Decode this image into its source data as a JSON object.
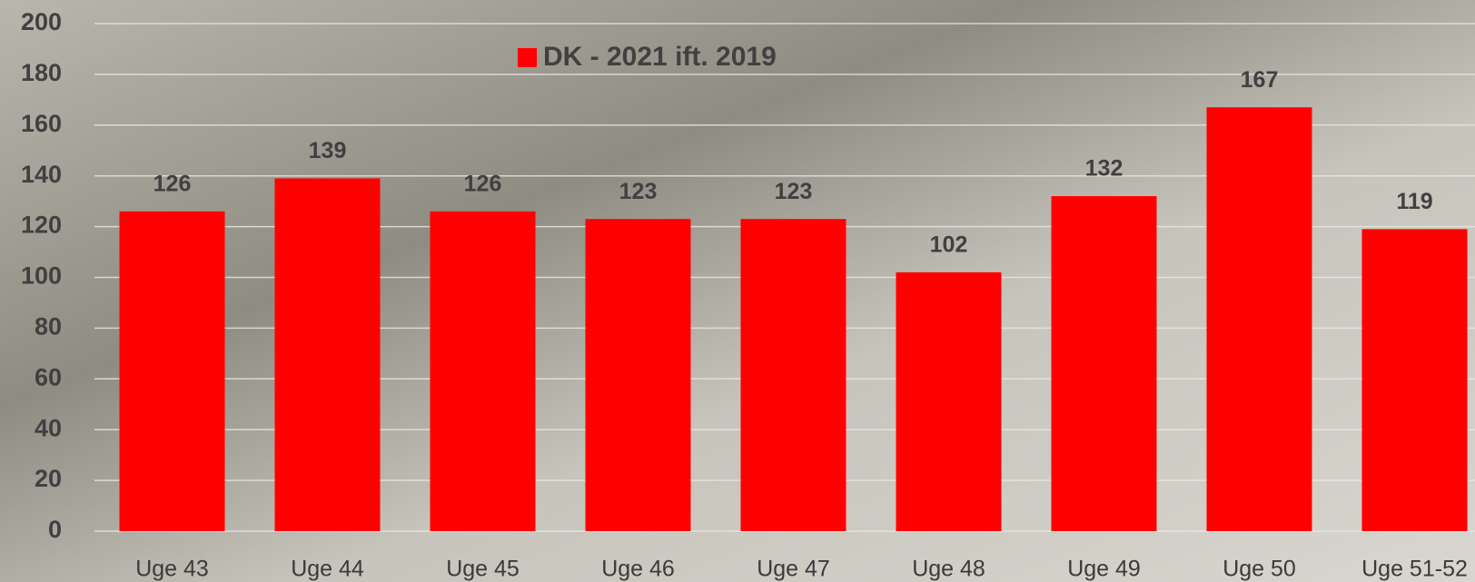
{
  "chart_data": {
    "type": "bar",
    "categories": [
      "Uge 43",
      "Uge 44",
      "Uge 45",
      "Uge 46",
      "Uge 47",
      "Uge 48",
      "Uge 49",
      "Uge 50",
      "Uge 51-52"
    ],
    "series": [
      {
        "name": "DK - 2021 ift. 2019",
        "color": "#ff0000",
        "values": [
          126,
          139,
          126,
          123,
          123,
          102,
          132,
          167,
          119
        ]
      }
    ],
    "ylim": [
      0,
      200
    ],
    "yticks": [
      0,
      20,
      40,
      60,
      80,
      100,
      120,
      140,
      160,
      180,
      200
    ],
    "grid": true,
    "legend": "top"
  }
}
